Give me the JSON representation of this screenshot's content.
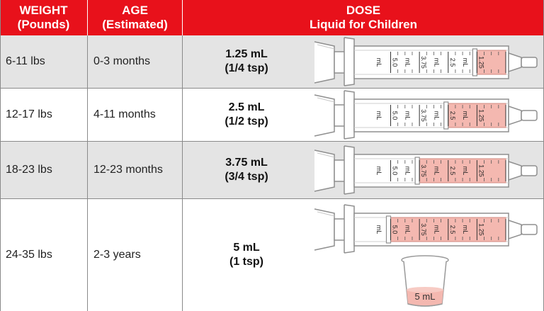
{
  "header": {
    "weight_line1": "WEIGHT",
    "weight_line2": "(Pounds)",
    "age_line1": "AGE",
    "age_line2": "(Estimated)",
    "dose_line1": "DOSE",
    "dose_line2": "Liquid for Children"
  },
  "rows": [
    {
      "weight": "6-11 lbs",
      "age": "0-3 months",
      "dose_ml": "1.25 mL",
      "dose_tsp": "(1/4 tsp)",
      "fill_ml": 1.25
    },
    {
      "weight": "12-17 lbs",
      "age": "4-11 months",
      "dose_ml": "2.5 mL",
      "dose_tsp": "(1/2 tsp)",
      "fill_ml": 2.5
    },
    {
      "weight": "18-23 lbs",
      "age": "12-23 months",
      "dose_ml": "3.75 mL",
      "dose_tsp": "(3/4 tsp)",
      "fill_ml": 3.75
    },
    {
      "weight": "24-35 lbs",
      "age": "2-3 years",
      "dose_ml": "5 mL",
      "dose_tsp": "(1 tsp)",
      "fill_ml": 5
    }
  ],
  "syringe_scale": {
    "unit": "mL",
    "values": [
      "5.0",
      "3.75",
      "2.5",
      "1.25"
    ]
  },
  "cup": {
    "label": "5 mL"
  },
  "colors": {
    "header_red": "#e8111b",
    "row_shade": "#e4e4e4",
    "liquid_pink": "#f4b8b0"
  }
}
